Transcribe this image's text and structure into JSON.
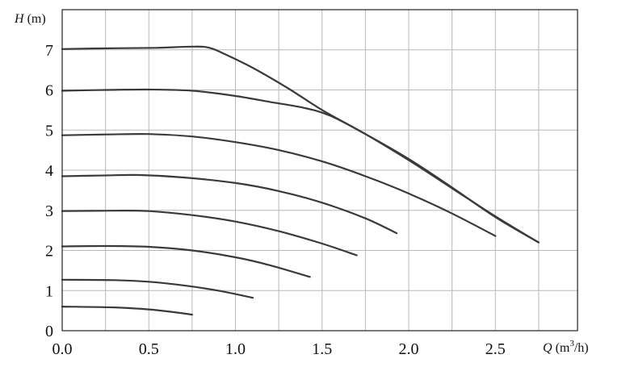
{
  "chart_data": {
    "type": "line",
    "xlabel": {
      "var": "Q",
      "unit_pre": " (m",
      "unit_sup": "3",
      "unit_post": "/h)"
    },
    "ylabel": {
      "var": "H",
      "unit": " (m)"
    },
    "xlim": [
      0,
      2.95
    ],
    "ylim": [
      0,
      8
    ],
    "xticks": [
      "0.0",
      "0.5",
      "1.0",
      "1.5",
      "2.0",
      "2.5"
    ],
    "yticks": [
      "0",
      "1",
      "2",
      "3",
      "4",
      "5",
      "6",
      "7"
    ],
    "grid": true,
    "colors": {
      "curve": "#3a3a3a",
      "grid": "#b8b8b8",
      "frame": "#222222"
    },
    "series": [
      {
        "points": [
          [
            0,
            0.6
          ],
          [
            0.3,
            0.58
          ],
          [
            0.5,
            0.53
          ],
          [
            0.65,
            0.46
          ],
          [
            0.75,
            0.4
          ]
        ]
      },
      {
        "points": [
          [
            0,
            1.27
          ],
          [
            0.3,
            1.26
          ],
          [
            0.5,
            1.22
          ],
          [
            0.7,
            1.13
          ],
          [
            0.9,
            1.0
          ],
          [
            1.1,
            0.82
          ]
        ]
      },
      {
        "points": [
          [
            0,
            2.1
          ],
          [
            0.25,
            2.11
          ],
          [
            0.5,
            2.09
          ],
          [
            0.75,
            2.0
          ],
          [
            1.0,
            1.83
          ],
          [
            1.2,
            1.63
          ],
          [
            1.43,
            1.34
          ]
        ]
      },
      {
        "points": [
          [
            0,
            2.98
          ],
          [
            0.3,
            2.99
          ],
          [
            0.5,
            2.98
          ],
          [
            0.75,
            2.88
          ],
          [
            1.0,
            2.72
          ],
          [
            1.25,
            2.48
          ],
          [
            1.5,
            2.17
          ],
          [
            1.7,
            1.88
          ]
        ]
      },
      {
        "points": [
          [
            0,
            3.85
          ],
          [
            0.25,
            3.87
          ],
          [
            0.45,
            3.88
          ],
          [
            0.7,
            3.82
          ],
          [
            1.0,
            3.68
          ],
          [
            1.25,
            3.48
          ],
          [
            1.5,
            3.19
          ],
          [
            1.75,
            2.8
          ],
          [
            1.93,
            2.43
          ]
        ]
      },
      {
        "points": [
          [
            0,
            4.87
          ],
          [
            0.25,
            4.89
          ],
          [
            0.5,
            4.9
          ],
          [
            0.75,
            4.84
          ],
          [
            1.0,
            4.7
          ],
          [
            1.25,
            4.5
          ],
          [
            1.5,
            4.22
          ],
          [
            1.75,
            3.85
          ],
          [
            2.0,
            3.42
          ],
          [
            2.25,
            2.92
          ],
          [
            2.5,
            2.36
          ]
        ]
      },
      {
        "points": [
          [
            0,
            5.98
          ],
          [
            0.25,
            6.0
          ],
          [
            0.5,
            6.01
          ],
          [
            0.75,
            5.98
          ],
          [
            1.0,
            5.85
          ],
          [
            1.2,
            5.7
          ],
          [
            1.4,
            5.55
          ],
          [
            1.55,
            5.35
          ],
          [
            1.75,
            4.9
          ],
          [
            2.0,
            4.28
          ],
          [
            2.25,
            3.57
          ],
          [
            2.5,
            2.83
          ],
          [
            2.75,
            2.2
          ]
        ]
      },
      {
        "points": [
          [
            0,
            7.02
          ],
          [
            0.3,
            7.04
          ],
          [
            0.55,
            7.05
          ],
          [
            0.75,
            7.08
          ],
          [
            0.85,
            7.05
          ],
          [
            0.95,
            6.87
          ],
          [
            1.1,
            6.55
          ],
          [
            1.3,
            6.05
          ],
          [
            1.5,
            5.5
          ],
          [
            1.75,
            4.9
          ],
          [
            2.0,
            4.25
          ],
          [
            2.25,
            3.55
          ],
          [
            2.5,
            2.85
          ],
          [
            2.75,
            2.2
          ]
        ]
      }
    ]
  }
}
